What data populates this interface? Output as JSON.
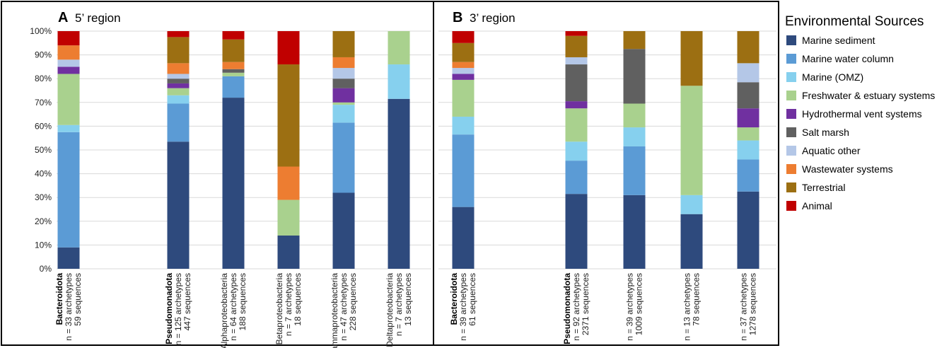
{
  "legend": {
    "title": "Environmental Sources",
    "items": [
      {
        "name": "Marine sediment",
        "color": "#2e4a7d"
      },
      {
        "name": "Marine water column",
        "color": "#5b9bd5"
      },
      {
        "name": "Marine (OMZ)",
        "color": "#86d0ee"
      },
      {
        "name": "Freshwater & estuary systems",
        "color": "#a9d18e"
      },
      {
        "name": "Hydrothermal vent systems",
        "color": "#7030a0"
      },
      {
        "name": "Salt marsh",
        "color": "#606060"
      },
      {
        "name": "Aquatic other",
        "color": "#b4c7e7"
      },
      {
        "name": "Wastewater systems",
        "color": "#ed7d31"
      },
      {
        "name": "Terrestrial",
        "color": "#9c6f12"
      },
      {
        "name": "Animal",
        "color": "#c00000"
      }
    ]
  },
  "y_ticks": [
    "0%",
    "10%",
    "20%",
    "30%",
    "40%",
    "50%",
    "60%",
    "70%",
    "80%",
    "90%",
    "100%"
  ],
  "chart_data": [
    {
      "type": "bar",
      "stacked": true,
      "panel": "A",
      "title": "5’ region",
      "ylim": [
        0,
        100
      ],
      "ylabel": "",
      "grid": true,
      "categories": [
        {
          "name": "Bacteroidota",
          "bold": true,
          "lines": [
            "n = 33 archetypes",
            "59 sequences"
          ]
        },
        {
          "name": "Pseudomonadota",
          "bold": true,
          "lines": [
            "n = 125 archetypes",
            "447 sequences"
          ]
        },
        {
          "name": "Alphaproteobacteria",
          "bold": false,
          "lines": [
            "n = 64 archetypes",
            "188 sequences"
          ]
        },
        {
          "name": "Betaproteobacteria",
          "bold": false,
          "lines": [
            "n = 7 archetypes",
            "18 sequences"
          ]
        },
        {
          "name": "Gammaproteobacteria",
          "bold": false,
          "lines": [
            "n = 47 archetypes",
            "228 sequences"
          ]
        },
        {
          "name": "Deltaproteobacteria",
          "bold": false,
          "lines": [
            "n = 7 archetypes",
            "13 sequences"
          ]
        }
      ],
      "series": [
        {
          "name": "Marine sediment",
          "values": [
            9,
            53.5,
            72,
            14,
            32,
            71.5
          ]
        },
        {
          "name": "Marine water column",
          "values": [
            48.5,
            16,
            9,
            0,
            29.5,
            0
          ]
        },
        {
          "name": "Marine (OMZ)",
          "values": [
            3,
            3.5,
            0,
            0,
            7.5,
            14.5
          ]
        },
        {
          "name": "Freshwater & estuary systems",
          "values": [
            21.5,
            3,
            1.5,
            15,
            1,
            14
          ]
        },
        {
          "name": "Hydrothermal vent systems",
          "values": [
            3,
            2,
            0,
            0,
            6,
            0
          ]
        },
        {
          "name": "Salt marsh",
          "values": [
            0,
            2,
            1.5,
            0,
            4,
            0
          ]
        },
        {
          "name": "Aquatic other",
          "values": [
            3,
            2,
            0,
            0,
            4.5,
            0
          ]
        },
        {
          "name": "Wastewater systems",
          "values": [
            6,
            4.5,
            3,
            14,
            4.5,
            0
          ]
        },
        {
          "name": "Terrestrial",
          "values": [
            0,
            11,
            9.5,
            43,
            11,
            0
          ]
        },
        {
          "name": "Animal",
          "values": [
            6,
            2.5,
            3.5,
            14,
            0,
            0
          ]
        }
      ]
    },
    {
      "type": "bar",
      "stacked": true,
      "panel": "B",
      "title": "3’ region",
      "ylim": [
        0,
        100
      ],
      "ylabel": "",
      "grid": true,
      "categories": [
        {
          "name": "Bacteroidota",
          "bold": true,
          "lines": [
            "n = 39 archetypes",
            "61 sequences"
          ]
        },
        {
          "name": "Pseudomonadota",
          "bold": true,
          "lines": [
            "n = 92 archetypes",
            "2371 sequences"
          ]
        },
        {
          "name": "",
          "bold": false,
          "lines": [
            "n = 39 archetypes",
            "1009 sequences"
          ]
        },
        {
          "name": "",
          "bold": false,
          "lines": [
            "n = 13 archetypes",
            "78 sequences"
          ]
        },
        {
          "name": "",
          "bold": false,
          "lines": [
            "n = 37 archetypes",
            "1278 sequences"
          ]
        }
      ],
      "series": [
        {
          "name": "Marine sediment",
          "values": [
            26,
            31.5,
            31,
            23,
            32.5
          ]
        },
        {
          "name": "Marine water column",
          "values": [
            30.5,
            14,
            20.5,
            0,
            13.5
          ]
        },
        {
          "name": "Marine (OMZ)",
          "values": [
            7.5,
            8,
            8,
            8,
            8
          ]
        },
        {
          "name": "Freshwater & estuary systems",
          "values": [
            15.5,
            14,
            10,
            46,
            5.5
          ]
        },
        {
          "name": "Hydrothermal vent systems",
          "values": [
            2.5,
            3,
            0,
            0,
            8
          ]
        },
        {
          "name": "Salt marsh",
          "values": [
            0,
            15.5,
            23,
            0,
            11
          ]
        },
        {
          "name": "Aquatic other",
          "values": [
            2.5,
            3,
            0,
            0,
            8
          ]
        },
        {
          "name": "Wastewater systems",
          "values": [
            2.5,
            0,
            0,
            0,
            0
          ]
        },
        {
          "name": "Terrestrial",
          "values": [
            8,
            9,
            7.5,
            23,
            13.5
          ]
        },
        {
          "name": "Animal",
          "values": [
            5,
            2,
            0,
            0,
            0
          ]
        }
      ]
    }
  ]
}
